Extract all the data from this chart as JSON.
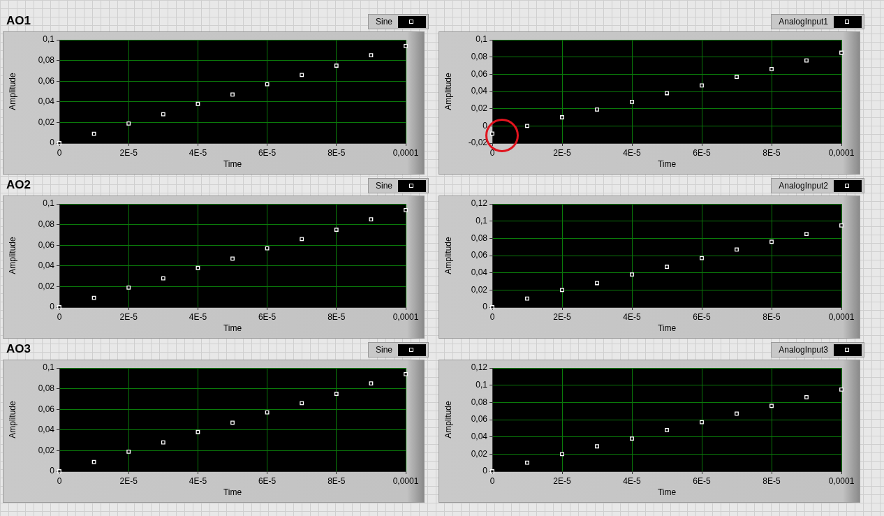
{
  "chart_data": [
    {
      "type": "scatter",
      "title": "AO1",
      "xlabel": "Time",
      "ylabel": "Amplitude",
      "x": [
        0,
        1e-05,
        2e-05,
        3e-05,
        4e-05,
        5e-05,
        6e-05,
        7e-05,
        8e-05,
        9e-05,
        0.0001
      ],
      "series": [
        {
          "name": "Sine",
          "color": "#ffffff",
          "values": [
            0,
            0.009,
            0.019,
            0.028,
            0.038,
            0.047,
            0.057,
            0.066,
            0.075,
            0.085,
            0.094
          ]
        }
      ],
      "xlim": [
        0,
        0.0001
      ],
      "xticks": [
        {
          "value": 0,
          "label": "0"
        },
        {
          "value": 2e-05,
          "label": "2E-5"
        },
        {
          "value": 4e-05,
          "label": "4E-5"
        },
        {
          "value": 6e-05,
          "label": "6E-5"
        },
        {
          "value": 8e-05,
          "label": "8E-5"
        },
        {
          "value": 0.0001,
          "label": "0,0001"
        }
      ],
      "ylim": [
        0,
        0.1
      ],
      "yticks": [
        {
          "value": 0,
          "label": "0"
        },
        {
          "value": 0.02,
          "label": "0,02"
        },
        {
          "value": 0.04,
          "label": "0,04"
        },
        {
          "value": 0.06,
          "label": "0,06"
        },
        {
          "value": 0.08,
          "label": "0,08"
        },
        {
          "value": 0.1,
          "label": "0,1"
        }
      ],
      "grid": true,
      "legend": "top right",
      "marker": "square"
    },
    {
      "type": "scatter",
      "xlabel": "Time",
      "ylabel": "Amplitude",
      "x": [
        0,
        1e-05,
        2e-05,
        3e-05,
        4e-05,
        5e-05,
        6e-05,
        7e-05,
        8e-05,
        9e-05,
        0.0001
      ],
      "series": [
        {
          "name": "AnalogInput1",
          "color": "#ffffff",
          "values": [
            -0.009,
            0,
            0.01,
            0.019,
            0.028,
            0.038,
            0.047,
            0.057,
            0.066,
            0.076,
            0.085
          ]
        }
      ],
      "xlim": [
        0,
        0.0001
      ],
      "xticks": [
        {
          "value": 0,
          "label": "0"
        },
        {
          "value": 2e-05,
          "label": "2E-5"
        },
        {
          "value": 4e-05,
          "label": "4E-5"
        },
        {
          "value": 6e-05,
          "label": "6E-5"
        },
        {
          "value": 8e-05,
          "label": "8E-5"
        },
        {
          "value": 0.0001,
          "label": "0,0001"
        }
      ],
      "ylim": [
        -0.02,
        0.1
      ],
      "yticks": [
        {
          "value": -0.02,
          "label": "-0,02"
        },
        {
          "value": 0,
          "label": "0"
        },
        {
          "value": 0.02,
          "label": "0,02"
        },
        {
          "value": 0.04,
          "label": "0,04"
        },
        {
          "value": 0.06,
          "label": "0,06"
        },
        {
          "value": 0.08,
          "label": "0,08"
        },
        {
          "value": 0.1,
          "label": "0,1"
        }
      ],
      "grid": true,
      "legend": "top right",
      "marker": "square"
    },
    {
      "type": "scatter",
      "title": "AO2",
      "xlabel": "Time",
      "ylabel": "Amplitude",
      "x": [
        0,
        1e-05,
        2e-05,
        3e-05,
        4e-05,
        5e-05,
        6e-05,
        7e-05,
        8e-05,
        9e-05,
        0.0001
      ],
      "series": [
        {
          "name": "Sine",
          "color": "#ffffff",
          "values": [
            0,
            0.009,
            0.019,
            0.028,
            0.038,
            0.047,
            0.057,
            0.066,
            0.075,
            0.085,
            0.094
          ]
        }
      ],
      "xlim": [
        0,
        0.0001
      ],
      "xticks": [
        {
          "value": 0,
          "label": "0"
        },
        {
          "value": 2e-05,
          "label": "2E-5"
        },
        {
          "value": 4e-05,
          "label": "4E-5"
        },
        {
          "value": 6e-05,
          "label": "6E-5"
        },
        {
          "value": 8e-05,
          "label": "8E-5"
        },
        {
          "value": 0.0001,
          "label": "0,0001"
        }
      ],
      "ylim": [
        0,
        0.1
      ],
      "yticks": [
        {
          "value": 0,
          "label": "0"
        },
        {
          "value": 0.02,
          "label": "0,02"
        },
        {
          "value": 0.04,
          "label": "0,04"
        },
        {
          "value": 0.06,
          "label": "0,06"
        },
        {
          "value": 0.08,
          "label": "0,08"
        },
        {
          "value": 0.1,
          "label": "0,1"
        }
      ],
      "grid": true,
      "legend": "top right",
      "marker": "square"
    },
    {
      "type": "scatter",
      "xlabel": "Time",
      "ylabel": "Amplitude",
      "x": [
        0,
        1e-05,
        2e-05,
        3e-05,
        4e-05,
        5e-05,
        6e-05,
        7e-05,
        8e-05,
        9e-05,
        0.0001
      ],
      "series": [
        {
          "name": "AnalogInput2",
          "color": "#ffffff",
          "values": [
            0,
            0.01,
            0.02,
            0.028,
            0.038,
            0.047,
            0.057,
            0.067,
            0.076,
            0.085,
            0.095
          ]
        }
      ],
      "xlim": [
        0,
        0.0001
      ],
      "xticks": [
        {
          "value": 0,
          "label": "0"
        },
        {
          "value": 2e-05,
          "label": "2E-5"
        },
        {
          "value": 4e-05,
          "label": "4E-5"
        },
        {
          "value": 6e-05,
          "label": "6E-5"
        },
        {
          "value": 8e-05,
          "label": "8E-5"
        },
        {
          "value": 0.0001,
          "label": "0,0001"
        }
      ],
      "ylim": [
        0,
        0.12
      ],
      "yticks": [
        {
          "value": 0,
          "label": "0"
        },
        {
          "value": 0.02,
          "label": "0,02"
        },
        {
          "value": 0.04,
          "label": "0,04"
        },
        {
          "value": 0.06,
          "label": "0,06"
        },
        {
          "value": 0.08,
          "label": "0,08"
        },
        {
          "value": 0.1,
          "label": "0,1"
        },
        {
          "value": 0.12,
          "label": "0,12"
        }
      ],
      "grid": true,
      "legend": "top right",
      "marker": "square"
    },
    {
      "type": "scatter",
      "title": "AO3",
      "xlabel": "Time",
      "ylabel": "Amplitude",
      "x": [
        0,
        1e-05,
        2e-05,
        3e-05,
        4e-05,
        5e-05,
        6e-05,
        7e-05,
        8e-05,
        9e-05,
        0.0001
      ],
      "series": [
        {
          "name": "Sine",
          "color": "#ffffff",
          "values": [
            0,
            0.009,
            0.019,
            0.028,
            0.038,
            0.047,
            0.057,
            0.066,
            0.075,
            0.085,
            0.094
          ]
        }
      ],
      "xlim": [
        0,
        0.0001
      ],
      "xticks": [
        {
          "value": 0,
          "label": "0"
        },
        {
          "value": 2e-05,
          "label": "2E-5"
        },
        {
          "value": 4e-05,
          "label": "4E-5"
        },
        {
          "value": 6e-05,
          "label": "6E-5"
        },
        {
          "value": 8e-05,
          "label": "8E-5"
        },
        {
          "value": 0.0001,
          "label": "0,0001"
        }
      ],
      "ylim": [
        0,
        0.1
      ],
      "yticks": [
        {
          "value": 0,
          "label": "0"
        },
        {
          "value": 0.02,
          "label": "0,02"
        },
        {
          "value": 0.04,
          "label": "0,04"
        },
        {
          "value": 0.06,
          "label": "0,06"
        },
        {
          "value": 0.08,
          "label": "0,08"
        },
        {
          "value": 0.1,
          "label": "0,1"
        }
      ],
      "grid": true,
      "legend": "top right",
      "marker": "square"
    },
    {
      "type": "scatter",
      "xlabel": "Time",
      "ylabel": "Amplitude",
      "x": [
        0,
        1e-05,
        2e-05,
        3e-05,
        4e-05,
        5e-05,
        6e-05,
        7e-05,
        8e-05,
        9e-05,
        0.0001
      ],
      "series": [
        {
          "name": "AnalogInput3",
          "color": "#ffffff",
          "values": [
            0,
            0.01,
            0.02,
            0.029,
            0.038,
            0.048,
            0.057,
            0.067,
            0.076,
            0.086,
            0.095
          ]
        }
      ],
      "xlim": [
        0,
        0.0001
      ],
      "xticks": [
        {
          "value": 0,
          "label": "0"
        },
        {
          "value": 2e-05,
          "label": "2E-5"
        },
        {
          "value": 4e-05,
          "label": "4E-5"
        },
        {
          "value": 6e-05,
          "label": "6E-5"
        },
        {
          "value": 8e-05,
          "label": "8E-5"
        },
        {
          "value": 0.0001,
          "label": "0,0001"
        }
      ],
      "ylim": [
        0,
        0.12
      ],
      "yticks": [
        {
          "value": 0,
          "label": "0"
        },
        {
          "value": 0.02,
          "label": "0,02"
        },
        {
          "value": 0.04,
          "label": "0,04"
        },
        {
          "value": 0.06,
          "label": "0,06"
        },
        {
          "value": 0.08,
          "label": "0,08"
        },
        {
          "value": 0.1,
          "label": "0,1"
        },
        {
          "value": 0.12,
          "label": "0,12"
        }
      ],
      "grid": true,
      "legend": "top right",
      "marker": "square"
    }
  ]
}
